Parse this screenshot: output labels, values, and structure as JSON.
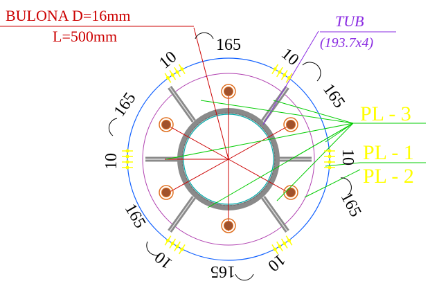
{
  "bolt_label": {
    "line1": "BULONA  D=16mm",
    "line2": "L=500mm"
  },
  "tube_label": {
    "line1": "TUB",
    "line2": "(193.7x4)"
  },
  "plate_labels": {
    "pl3": "PL - 3",
    "pl1": "PL - 1",
    "pl2": "PL - 2"
  },
  "dimensions": {
    "d165_top": "165",
    "d165_upper_left": "165",
    "d165_upper_right": "165",
    "d165_lower_left": "165",
    "d165_lower_right": "165",
    "d165_bottom": "165",
    "d10_upper_left": "10",
    "d10_upper_right": "10",
    "d10_left": "10",
    "d10_right": "10",
    "d10_lower_left": "10",
    "d10_lower_right": "10"
  },
  "colors": {
    "red": "#cc0000",
    "purple": "#8a2be2",
    "yellow": "#ffff00",
    "green": "#00cc00",
    "blue": "#1060ff",
    "magenta_circle": "#b040b0",
    "gray": "#999999",
    "cyan": "#00aaaa",
    "bolt_brown": "#a0522d",
    "bolt_orange": "#e07020"
  },
  "icons": {
    "bolt": "bolt-circle-icon"
  }
}
